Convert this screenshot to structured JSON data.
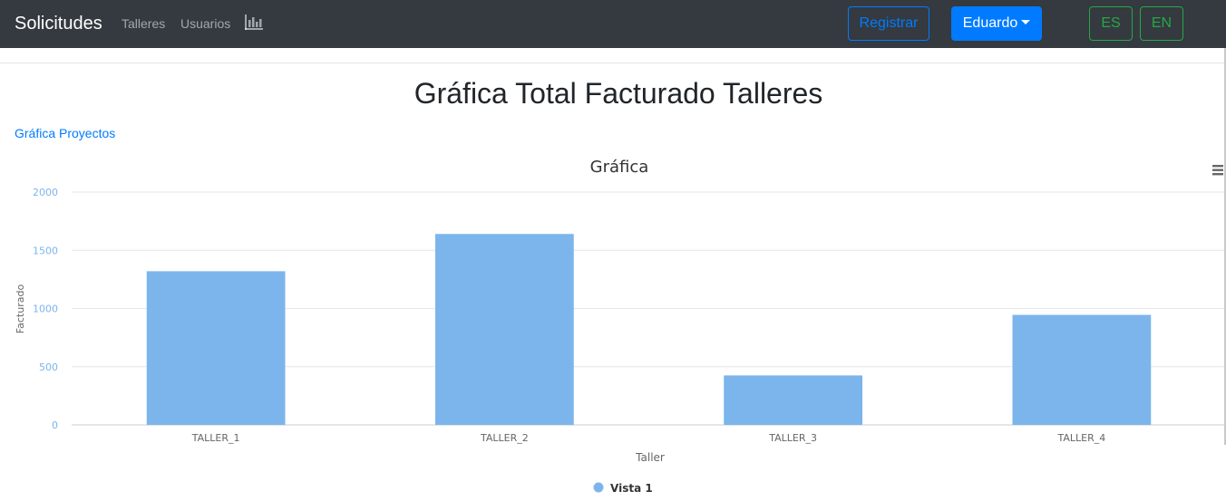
{
  "navbar": {
    "brand": "Solicitudes",
    "links": [
      "Talleres",
      "Usuarios"
    ],
    "chart_icon": "bar-chart-icon",
    "register_label": "Registrar",
    "user_label": "Eduardo",
    "lang_es": "ES",
    "lang_en": "EN"
  },
  "page": {
    "title": "Gráfica Total Facturado Talleres",
    "link_label": "Gráfica Proyectos"
  },
  "chart_data": {
    "type": "bar",
    "title": "Gráfica",
    "categories": [
      "TALLER_1",
      "TALLER_2",
      "TALLER_3",
      "TALLER_4"
    ],
    "series": [
      {
        "name": "Vista 1",
        "values": [
          1320,
          1640,
          425,
          945
        ],
        "color": "#7cb5ec"
      }
    ],
    "xlabel": "Taller",
    "ylabel": "Facturado",
    "ylim": [
      0,
      2000
    ],
    "yticks": [
      0,
      500,
      1000,
      1500,
      2000
    ],
    "grid": true,
    "legend": "bottom-center",
    "menu_icon": "hamburger-menu-icon"
  },
  "colors": {
    "navbar_bg": "#343a40",
    "primary": "#007bff",
    "success": "#28a745",
    "bar": "#7cb5ec"
  }
}
